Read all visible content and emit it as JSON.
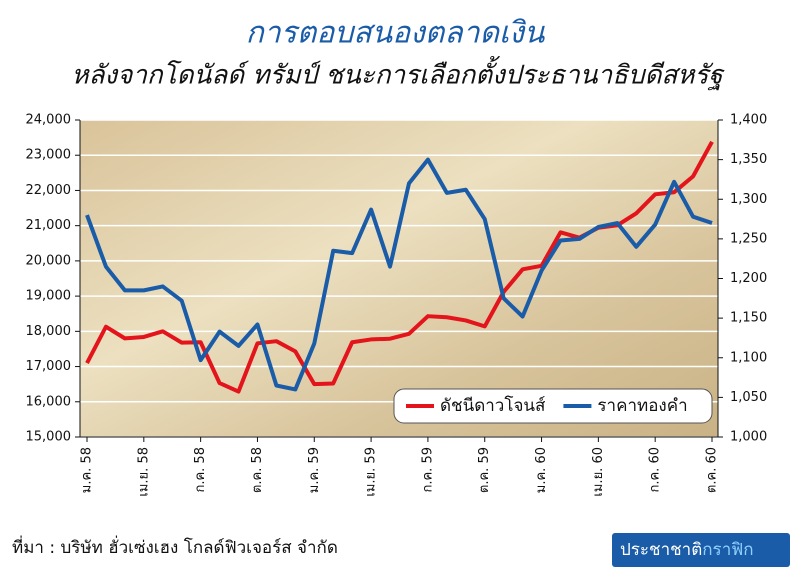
{
  "chart_data": {
    "type": "line",
    "title": "การตอบสนองตลาดเงิน",
    "subtitle": "หลังจากโดนัลด์ ทรัมป์ ชนะการเลือกตั้งประธานาธิบดีสหรัฐ",
    "categories": [
      "ม.ค. 58",
      null,
      null,
      "เม.ย. 58",
      null,
      null,
      "ก.ค. 58",
      null,
      null,
      "ต.ค. 58",
      null,
      null,
      "ม.ค. 59",
      null,
      null,
      "เม.ย. 59",
      null,
      null,
      "ก.ค. 59",
      null,
      null,
      "ต.ค. 59",
      null,
      null,
      "ม.ค. 60",
      null,
      null,
      "เม.ย. 60",
      null,
      null,
      "ก.ค. 60",
      null,
      null,
      "ต.ค. 60"
    ],
    "series": [
      {
        "name": "ดัชนีดาวโจนส์",
        "color": "#e3141b",
        "values": [
          17100,
          18130,
          17800,
          17840,
          18000,
          17680,
          17690,
          16530,
          16290,
          17660,
          17720,
          17430,
          16500,
          16520,
          17690,
          17770,
          17790,
          17930,
          18430,
          18400,
          18310,
          18140,
          19120,
          19760,
          19860,
          20810,
          20660,
          20940,
          21010,
          21350,
          21890,
          21950,
          22400,
          23380
        ]
      },
      {
        "name": "ราคาทองคำ",
        "color": "#1a5ca8",
        "axis": "y2",
        "values": [
          1280,
          1215,
          1185,
          1185,
          1190,
          1172,
          1097,
          1133,
          1115,
          1142,
          1065,
          1060,
          1118,
          1235,
          1232,
          1287,
          1215,
          1320,
          1350,
          1308,
          1312,
          1275,
          1175,
          1152,
          1210,
          1248,
          1250,
          1265,
          1270,
          1240,
          1268,
          1322,
          1278,
          1270
        ]
      }
    ],
    "ylim": [
      15000,
      24000
    ],
    "yticks": [
      {
        "value": 15000,
        "label": "15,000"
      },
      {
        "value": 16000,
        "label": "16,000"
      },
      {
        "value": 17000,
        "label": "17,000"
      },
      {
        "value": 18000,
        "label": "18,000"
      },
      {
        "value": 19000,
        "label": "19,000"
      },
      {
        "value": 20000,
        "label": "20,000"
      },
      {
        "value": 21000,
        "label": "21,000"
      },
      {
        "value": 22000,
        "label": "22,000"
      },
      {
        "value": 23000,
        "label": "23,000"
      },
      {
        "value": 24000,
        "label": "24,000"
      }
    ],
    "y2lim": [
      1000,
      1400
    ],
    "y2ticks": [
      {
        "value": 1000,
        "label": "1,000"
      },
      {
        "value": 1050,
        "label": "1,050"
      },
      {
        "value": 1100,
        "label": "1,100"
      },
      {
        "value": 1150,
        "label": "1,150"
      },
      {
        "value": 1200,
        "label": "1,200"
      },
      {
        "value": 1250,
        "label": "1,250"
      },
      {
        "value": 1300,
        "label": "1,300"
      },
      {
        "value": 1350,
        "label": "1,350"
      },
      {
        "value": 1400,
        "label": "1,400"
      }
    ],
    "grid": true,
    "legend": "lower right"
  },
  "footer": {
    "source": "ที่มา : บริษัท ฮั่วเซ่งเฮง โกลด์ฟิวเจอร์ส จำกัด",
    "brand": "ประชาชาติ",
    "brand_accent": "กราฟิก"
  }
}
